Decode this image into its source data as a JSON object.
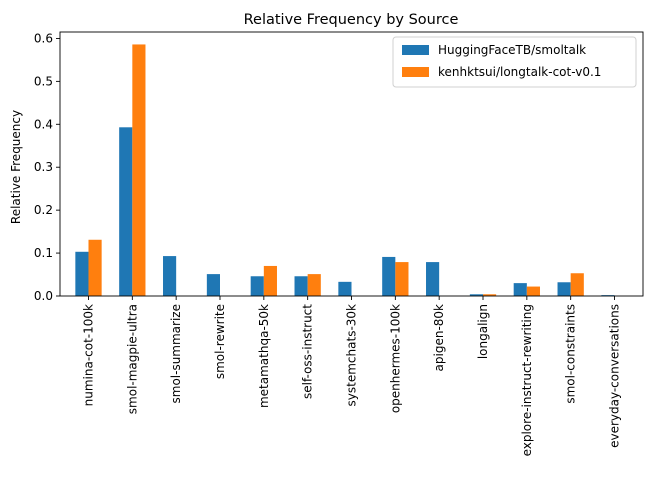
{
  "chart_data": {
    "type": "bar",
    "title": "Relative Frequency by Source",
    "xlabel": "",
    "ylabel": "Relative Frequency",
    "ylim": [
      0,
      0.615
    ],
    "yticks": [
      "0.0",
      "0.1",
      "0.2",
      "0.3",
      "0.4",
      "0.5",
      "0.6"
    ],
    "grid": false,
    "legend_position": "top-right",
    "categories": [
      "numina-cot-100k",
      "smol-magpie-ultra",
      "smol-summarize",
      "smol-rewrite",
      "metamathqa-50k",
      "self-oss-instruct",
      "systemchats-30k",
      "openhermes-100k",
      "apigen-80k",
      "longalign",
      "explore-instruct-rewriting",
      "smol-constraints",
      "everyday-conversations"
    ],
    "series": [
      {
        "name": "HuggingFaceTB/smoltalk",
        "color": "#1f77b4",
        "values": [
          0.103,
          0.393,
          0.093,
          0.051,
          0.046,
          0.046,
          0.033,
          0.091,
          0.079,
          0.004,
          0.03,
          0.032,
          0.002
        ]
      },
      {
        "name": "kenhktsui/longtalk-cot-v0.1",
        "color": "#ff7f0e",
        "values": [
          0.131,
          0.586,
          0.0,
          0.0,
          0.07,
          0.051,
          0.0,
          0.079,
          0.0,
          0.004,
          0.022,
          0.053,
          0.0
        ]
      }
    ]
  }
}
